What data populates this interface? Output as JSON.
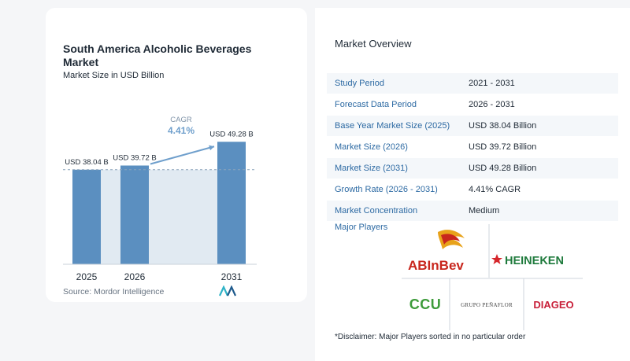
{
  "chart_card": {
    "title": "South America Alcoholic Beverages Market",
    "subtitle": "Market Size in USD Billion",
    "source": "Source: Mordor Intelligence"
  },
  "chart_data": {
    "type": "bar",
    "title": "South America Alcoholic Beverages Market",
    "subtitle": "Market Size in USD Billion",
    "categories": [
      "2025",
      "2026",
      "2031"
    ],
    "values": [
      38.04,
      39.72,
      49.28
    ],
    "data_labels": [
      "USD 38.04 B",
      "USD 39.72 B",
      "USD 49.28 B"
    ],
    "ylim": [
      0,
      55
    ],
    "annotation": {
      "label": "CAGR",
      "value": "4.41%",
      "from": "2026",
      "to": "2031"
    },
    "colors": {
      "bar": "#5b8fc0",
      "band": "#e1eaf2",
      "arrow": "#6f9fcc"
    }
  },
  "overview": {
    "title": "Market Overview",
    "rows": [
      {
        "label": "Study Period",
        "value": "2021 - 2031"
      },
      {
        "label": "Forecast Data Period",
        "value": "2026 - 2031"
      },
      {
        "label": "Base Year Market Size (2025)",
        "value": "USD 38.04 Billion"
      },
      {
        "label": "Market Size (2026)",
        "value": "USD 39.72 Billion"
      },
      {
        "label": "Market Size (2031)",
        "value": "USD 49.28 Billion"
      },
      {
        "label": "Growth Rate (2026 - 2031)",
        "value": "4.41% CAGR"
      },
      {
        "label": "Market Concentration",
        "value": "Medium"
      }
    ]
  },
  "players": {
    "label": "Major Players",
    "logos": {
      "abinbev": "ABInBev",
      "heineken": "HEINEKEN",
      "ccu": "CCU",
      "penaflor": "GRUPO PEÑAFLOR",
      "diageo": "DIAGEO"
    },
    "disclaimer": "*Disclaimer: Major Players sorted in no particular order"
  }
}
